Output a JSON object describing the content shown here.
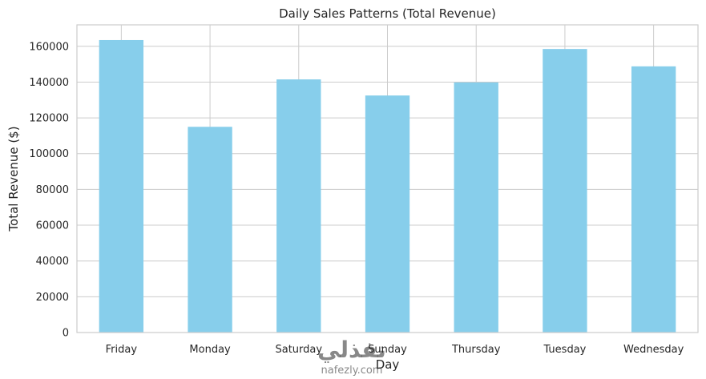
{
  "chart_data": {
    "type": "bar",
    "title": "Daily Sales Patterns (Total Revenue)",
    "xlabel": "Day",
    "ylabel": "Total Revenue ($)",
    "categories": [
      "Friday",
      "Monday",
      "Saturday",
      "Sunday",
      "Thursday",
      "Tuesday",
      "Wednesday"
    ],
    "values": [
      163500,
      115000,
      141500,
      132500,
      139800,
      158500,
      148800
    ],
    "ylim": [
      0,
      172000
    ],
    "yticks": [
      0,
      20000,
      40000,
      60000,
      80000,
      100000,
      120000,
      140000,
      160000
    ],
    "grid": true,
    "bar_color": "#87ceeb",
    "grid_color": "#cccccc"
  },
  "watermark": {
    "text": "نفذلي",
    "subtext": "nafezly.com"
  }
}
